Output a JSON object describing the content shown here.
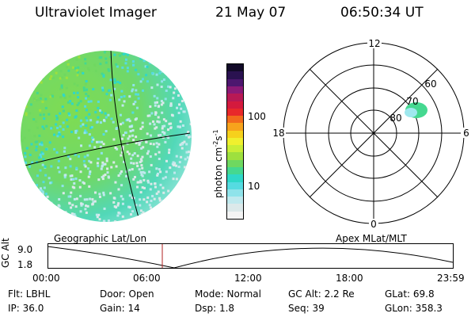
{
  "header": {
    "instrument": "Ultraviolet Imager",
    "date": "21 May 07",
    "time": "06:50:34 UT"
  },
  "colorbar": {
    "unit_label": "photon cm",
    "unit_exp1": "-2",
    "unit_s": "s",
    "unit_exp2": "-1",
    "ticks": [
      "100",
      "10"
    ],
    "colors": [
      "#f4f4f4",
      "#dce9ea",
      "#bfe9ee",
      "#8fe3ea",
      "#55dbe1",
      "#2fd8c8",
      "#45d890",
      "#6fd860",
      "#9ee03e",
      "#c9ee36",
      "#f0f02e",
      "#f6d11c",
      "#f7a31c",
      "#f26a1c",
      "#e8282a",
      "#d41a3d",
      "#b81955",
      "#8c1a77",
      "#4d176f",
      "#2a1250",
      "#120a28"
    ]
  },
  "polar": {
    "mlt_labels": {
      "top": "12",
      "left": "18",
      "right": "6",
      "bottom": "0"
    },
    "lat_labels": [
      "60",
      "70",
      "80"
    ]
  },
  "timeline": {
    "ylabel": "GC Alt",
    "ytick_top": "9.0",
    "ytick_bottom": "1.8",
    "left_title": "Geographic Lat/Lon",
    "right_title": "Apex MLat/MLT",
    "xticks": [
      "00:00",
      "06:00",
      "12:00",
      "18:00",
      "23:59"
    ],
    "marker_time": "06:50"
  },
  "info": {
    "flt": "Flt: LBHL",
    "ip": "IP: 36.0",
    "door": "Door: Open",
    "gain": "Gain: 14",
    "mode": "Mode: Normal",
    "dsp": "Dsp:    1.8",
    "gc_alt": "GC Alt: 2.2 Re",
    "seq": "Seq: 39",
    "glat": "GLat:  69.8",
    "glon": "GLon: 358.3"
  }
}
